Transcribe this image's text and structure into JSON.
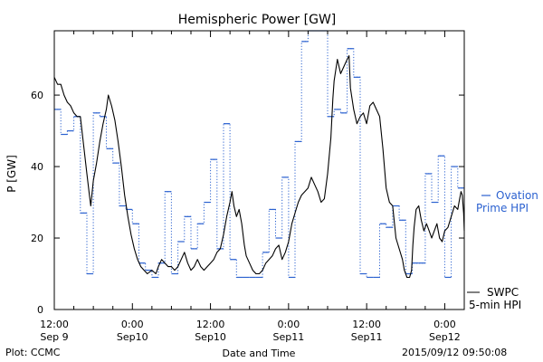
{
  "chart_data": {
    "type": "line",
    "title": "Hemispheric Power [GW]",
    "xlabel": "Date and Time",
    "ylabel": "P [GW]",
    "ylim": [
      0,
      78
    ],
    "xlim": [
      12,
      75
    ],
    "yticks": [
      0,
      20,
      40,
      60
    ],
    "xticks": [
      {
        "t": 12,
        "line1": "12:00",
        "line2": "Sep 9"
      },
      {
        "t": 24,
        "line1": "0:00",
        "line2": "Sep10"
      },
      {
        "t": 36,
        "line1": "12:00",
        "line2": "Sep10"
      },
      {
        "t": 48,
        "line1": "0:00",
        "line2": "Sep11"
      },
      {
        "t": 60,
        "line1": "12:00",
        "line2": "Sep11"
      },
      {
        "t": 72,
        "line1": "0:00",
        "line2": "Sep12"
      }
    ],
    "series": [
      {
        "name": "SWPC 5-min HPI",
        "legend_line1": "SWPC",
        "legend_line2": "5-min HPI",
        "color": "#000000",
        "style": "solid",
        "points": [
          [
            12.0,
            65
          ],
          [
            12.5,
            63
          ],
          [
            13.0,
            63
          ],
          [
            13.5,
            60
          ],
          [
            14.0,
            58
          ],
          [
            14.5,
            57
          ],
          [
            15.0,
            55
          ],
          [
            15.5,
            54
          ],
          [
            16.0,
            54
          ],
          [
            16.5,
            46
          ],
          [
            17.0,
            38
          ],
          [
            17.4,
            32
          ],
          [
            17.6,
            29
          ],
          [
            18.0,
            36
          ],
          [
            18.5,
            41
          ],
          [
            19.0,
            47
          ],
          [
            19.5,
            52
          ],
          [
            20.0,
            56
          ],
          [
            20.3,
            60
          ],
          [
            20.8,
            57
          ],
          [
            21.3,
            53
          ],
          [
            21.8,
            47
          ],
          [
            22.3,
            40
          ],
          [
            22.8,
            32
          ],
          [
            23.3,
            26
          ],
          [
            23.8,
            21
          ],
          [
            24.3,
            17
          ],
          [
            24.8,
            14
          ],
          [
            25.3,
            12
          ],
          [
            25.8,
            11
          ],
          [
            26.3,
            10
          ],
          [
            27.0,
            11
          ],
          [
            27.6,
            10
          ],
          [
            28.0,
            12
          ],
          [
            28.5,
            14
          ],
          [
            29.0,
            13
          ],
          [
            29.5,
            12
          ],
          [
            30.0,
            12
          ],
          [
            30.5,
            11
          ],
          [
            31.0,
            12
          ],
          [
            31.5,
            14
          ],
          [
            32.0,
            16
          ],
          [
            32.5,
            13
          ],
          [
            33.0,
            11
          ],
          [
            33.5,
            12
          ],
          [
            34.0,
            14
          ],
          [
            34.5,
            12
          ],
          [
            35.0,
            11
          ],
          [
            35.5,
            12
          ],
          [
            36.0,
            13
          ],
          [
            36.5,
            14
          ],
          [
            37.0,
            16
          ],
          [
            37.5,
            17
          ],
          [
            38.0,
            21
          ],
          [
            38.5,
            26
          ],
          [
            39.0,
            30
          ],
          [
            39.3,
            33
          ],
          [
            39.6,
            29
          ],
          [
            40.0,
            26
          ],
          [
            40.4,
            28
          ],
          [
            40.8,
            24
          ],
          [
            41.2,
            18
          ],
          [
            41.5,
            15
          ],
          [
            42.0,
            13
          ],
          [
            42.5,
            11
          ],
          [
            43.0,
            10
          ],
          [
            43.5,
            10
          ],
          [
            44.0,
            11
          ],
          [
            44.5,
            13
          ],
          [
            45.0,
            14
          ],
          [
            45.5,
            15
          ],
          [
            46.0,
            17
          ],
          [
            46.5,
            18
          ],
          [
            47.0,
            14
          ],
          [
            47.5,
            16
          ],
          [
            48.0,
            19
          ],
          [
            48.5,
            24
          ],
          [
            49.0,
            27
          ],
          [
            49.5,
            30
          ],
          [
            50.0,
            32
          ],
          [
            50.5,
            33
          ],
          [
            51.0,
            34
          ],
          [
            51.5,
            37
          ],
          [
            52.0,
            35
          ],
          [
            52.5,
            33
          ],
          [
            53.0,
            30
          ],
          [
            53.5,
            31
          ],
          [
            54.0,
            38
          ],
          [
            54.5,
            48
          ],
          [
            54.8,
            59
          ],
          [
            55.0,
            64
          ],
          [
            55.5,
            70
          ],
          [
            56.0,
            66
          ],
          [
            56.5,
            68
          ],
          [
            57.0,
            70
          ],
          [
            57.3,
            71
          ],
          [
            57.5,
            62
          ],
          [
            58.0,
            56
          ],
          [
            58.5,
            52
          ],
          [
            59.0,
            54
          ],
          [
            59.5,
            55
          ],
          [
            60.0,
            52
          ],
          [
            60.5,
            57
          ],
          [
            61.0,
            58
          ],
          [
            61.5,
            56
          ],
          [
            62.0,
            54
          ],
          [
            62.5,
            45
          ],
          [
            63.0,
            34
          ],
          [
            63.5,
            30
          ],
          [
            64.0,
            29
          ],
          [
            64.5,
            20
          ],
          [
            65.0,
            17
          ],
          [
            65.5,
            14
          ],
          [
            65.8,
            11
          ],
          [
            66.2,
            9
          ],
          [
            66.6,
            9
          ],
          [
            66.9,
            11
          ],
          [
            67.1,
            18
          ],
          [
            67.3,
            23
          ],
          [
            67.6,
            28
          ],
          [
            68.0,
            29
          ],
          [
            68.4,
            25
          ],
          [
            68.8,
            22
          ],
          [
            69.2,
            24
          ],
          [
            69.6,
            22
          ],
          [
            70.0,
            20
          ],
          [
            70.4,
            22
          ],
          [
            70.8,
            24
          ],
          [
            71.2,
            20
          ],
          [
            71.6,
            19
          ],
          [
            72.0,
            22
          ],
          [
            72.5,
            23
          ],
          [
            73.0,
            26
          ],
          [
            73.5,
            29
          ],
          [
            74.0,
            28
          ],
          [
            74.2,
            30
          ],
          [
            74.5,
            33
          ],
          [
            74.7,
            32
          ],
          [
            74.9,
            27
          ],
          [
            75.0,
            22
          ]
        ]
      },
      {
        "name": "Ovation Prime HPI",
        "legend_line1": "Ovation",
        "legend_line2": "Prime HPI",
        "color": "#2c62d0",
        "style": "dotted-step",
        "points": [
          [
            12,
            56
          ],
          [
            13,
            49
          ],
          [
            14,
            50
          ],
          [
            15,
            54
          ],
          [
            16,
            27
          ],
          [
            17,
            10
          ],
          [
            18,
            55
          ],
          [
            19,
            54
          ],
          [
            20,
            45
          ],
          [
            21,
            41
          ],
          [
            22,
            29
          ],
          [
            23,
            28
          ],
          [
            24,
            24
          ],
          [
            25,
            13
          ],
          [
            26,
            11
          ],
          [
            27,
            9
          ],
          [
            28,
            13
          ],
          [
            29,
            33
          ],
          [
            30,
            10
          ],
          [
            31,
            19
          ],
          [
            32,
            26
          ],
          [
            33,
            17
          ],
          [
            34,
            24
          ],
          [
            35,
            30
          ],
          [
            36,
            42
          ],
          [
            37,
            17
          ],
          [
            38,
            52
          ],
          [
            39,
            14
          ],
          [
            40,
            9
          ],
          [
            41,
            9
          ],
          [
            42,
            9
          ],
          [
            43,
            9
          ],
          [
            44,
            16
          ],
          [
            45,
            28
          ],
          [
            46,
            20
          ],
          [
            47,
            37
          ],
          [
            48,
            9
          ],
          [
            49,
            47
          ],
          [
            50,
            75
          ],
          [
            51,
            78
          ],
          [
            52,
            78
          ],
          [
            53,
            78
          ],
          [
            54,
            54
          ],
          [
            55,
            56
          ],
          [
            56,
            55
          ],
          [
            57,
            73
          ],
          [
            58,
            65
          ],
          [
            59,
            10
          ],
          [
            60,
            9
          ],
          [
            61,
            9
          ],
          [
            62,
            24
          ],
          [
            63,
            23
          ],
          [
            64,
            29
          ],
          [
            65,
            25
          ],
          [
            66,
            10
          ],
          [
            67,
            13
          ],
          [
            68,
            13
          ],
          [
            69,
            38
          ],
          [
            70,
            30
          ],
          [
            71,
            43
          ],
          [
            72,
            9
          ],
          [
            73,
            40
          ],
          [
            74,
            34
          ],
          [
            75,
            34
          ]
        ]
      }
    ]
  },
  "footer": {
    "left": "Plot: CCMC",
    "right": "2015/09/12 09:50:08"
  }
}
